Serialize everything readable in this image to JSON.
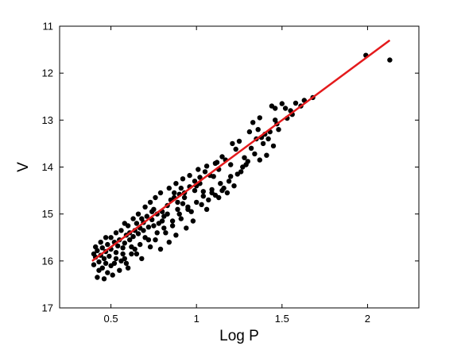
{
  "chart_data": {
    "type": "scatter",
    "title": "",
    "xlabel": "Log P",
    "ylabel": "V",
    "xlim": [
      0.2,
      2.3
    ],
    "ylim": [
      11,
      17
    ],
    "y_inverted": true,
    "x_ticks": [
      0.5,
      1,
      1.5,
      2
    ],
    "x_tick_labels": [
      "0.5",
      "1",
      "1.5",
      "2"
    ],
    "y_ticks": [
      11,
      12,
      13,
      14,
      15,
      16,
      17
    ],
    "y_tick_labels": [
      "11",
      "12",
      "13",
      "14",
      "15",
      "16",
      "17"
    ],
    "grid": false,
    "legend": "none",
    "colors": {
      "points": "#000000",
      "fit_line": "#e41a1c",
      "axes": "#000000"
    },
    "fit_line": {
      "x": [
        0.39,
        2.13
      ],
      "y": [
        16.0,
        11.3
      ]
    },
    "series": [
      {
        "values_note": "",
        "points": [
          [
            1.99,
            11.62
          ],
          [
            2.13,
            11.72
          ],
          [
            1.68,
            12.52
          ],
          [
            1.63,
            12.58
          ],
          [
            1.58,
            12.64
          ],
          [
            1.55,
            12.8
          ],
          [
            1.5,
            12.65
          ],
          [
            1.52,
            12.75
          ],
          [
            1.46,
            12.75
          ],
          [
            1.53,
            12.96
          ],
          [
            1.46,
            13.0
          ],
          [
            1.47,
            13.08
          ],
          [
            1.4,
            13.3
          ],
          [
            1.38,
            13.37
          ],
          [
            1.35,
            13.4
          ],
          [
            1.36,
            13.2
          ],
          [
            1.43,
            13.25
          ],
          [
            1.33,
            13.05
          ],
          [
            1.37,
            12.95
          ],
          [
            1.44,
            12.7
          ],
          [
            1.31,
            13.25
          ],
          [
            1.25,
            13.45
          ],
          [
            1.21,
            13.5
          ],
          [
            1.28,
            13.8
          ],
          [
            1.34,
            13.72
          ],
          [
            1.23,
            13.62
          ],
          [
            1.17,
            13.85
          ],
          [
            1.2,
            13.95
          ],
          [
            1.15,
            13.78
          ],
          [
            1.13,
            14.05
          ],
          [
            1.1,
            14.2
          ],
          [
            1.08,
            14.18
          ],
          [
            1.12,
            13.9
          ],
          [
            1.05,
            14.1
          ],
          [
            1.02,
            14.22
          ],
          [
            0.99,
            14.3
          ],
          [
            0.96,
            14.42
          ],
          [
            1.0,
            14.4
          ],
          [
            1.04,
            14.52
          ],
          [
            1.09,
            14.48
          ],
          [
            1.14,
            14.35
          ],
          [
            0.93,
            14.55
          ],
          [
            0.9,
            14.58
          ],
          [
            0.87,
            14.65
          ],
          [
            0.92,
            14.78
          ],
          [
            0.95,
            14.85
          ],
          [
            0.89,
            14.9
          ],
          [
            0.85,
            14.7
          ],
          [
            0.83,
            14.82
          ],
          [
            0.8,
            14.95
          ],
          [
            0.81,
            15.05
          ],
          [
            0.77,
            15.0
          ],
          [
            0.75,
            14.9
          ],
          [
            0.78,
            15.2
          ],
          [
            0.74,
            15.12
          ],
          [
            0.71,
            15.05
          ],
          [
            0.72,
            15.28
          ],
          [
            0.69,
            15.18
          ],
          [
            0.67,
            15.3
          ],
          [
            0.66,
            15.42
          ],
          [
            0.7,
            15.5
          ],
          [
            0.64,
            15.35
          ],
          [
            0.63,
            15.48
          ],
          [
            0.61,
            15.55
          ],
          [
            0.62,
            15.7
          ],
          [
            0.59,
            15.45
          ],
          [
            0.58,
            15.62
          ],
          [
            0.57,
            15.72
          ],
          [
            0.55,
            15.55
          ],
          [
            0.54,
            15.68
          ],
          [
            0.53,
            15.82
          ],
          [
            0.52,
            15.6
          ],
          [
            0.5,
            15.75
          ],
          [
            0.49,
            15.9
          ],
          [
            0.48,
            15.65
          ],
          [
            0.47,
            15.8
          ],
          [
            0.46,
            15.95
          ],
          [
            0.45,
            15.72
          ],
          [
            0.44,
            15.88
          ],
          [
            0.43,
            16.02
          ],
          [
            0.42,
            15.78
          ],
          [
            0.41,
            15.92
          ],
          [
            0.4,
            16.08
          ],
          [
            0.45,
            16.15
          ],
          [
            0.48,
            16.25
          ],
          [
            0.42,
            16.35
          ],
          [
            0.46,
            16.38
          ],
          [
            0.51,
            16.3
          ],
          [
            0.55,
            16.2
          ],
          [
            0.6,
            16.15
          ],
          [
            0.52,
            16.05
          ],
          [
            0.58,
            15.95
          ],
          [
            0.65,
            15.85
          ],
          [
            0.68,
            15.95
          ],
          [
            0.73,
            15.7
          ],
          [
            0.76,
            15.55
          ],
          [
            0.82,
            15.4
          ],
          [
            0.86,
            15.25
          ],
          [
            0.91,
            15.1
          ],
          [
            0.97,
            14.95
          ],
          [
            1.03,
            14.8
          ],
          [
            1.07,
            14.7
          ],
          [
            1.11,
            14.6
          ],
          [
            1.16,
            14.45
          ],
          [
            1.19,
            14.3
          ],
          [
            1.24,
            14.15
          ],
          [
            1.27,
            14.0
          ],
          [
            1.3,
            13.88
          ],
          [
            1.22,
            14.4
          ],
          [
            1.18,
            14.55
          ],
          [
            1.13,
            14.65
          ],
          [
            1.06,
            14.9
          ],
          [
            0.98,
            15.15
          ],
          [
            0.94,
            15.3
          ],
          [
            0.88,
            15.45
          ],
          [
            0.84,
            15.6
          ],
          [
            0.79,
            15.75
          ],
          [
            0.56,
            15.35
          ],
          [
            0.6,
            15.25
          ],
          [
            0.63,
            15.1
          ],
          [
            0.66,
            15.0
          ],
          [
            0.7,
            14.85
          ],
          [
            0.73,
            14.75
          ],
          [
            0.76,
            14.65
          ],
          [
            0.79,
            14.55
          ],
          [
            0.84,
            14.45
          ],
          [
            0.88,
            14.35
          ],
          [
            0.92,
            14.25
          ],
          [
            0.96,
            14.18
          ],
          [
            1.01,
            14.05
          ],
          [
            1.06,
            13.98
          ],
          [
            1.11,
            13.92
          ],
          [
            0.5,
            15.5
          ],
          [
            0.53,
            15.4
          ],
          [
            0.44,
            15.6
          ],
          [
            0.47,
            15.5
          ],
          [
            0.41,
            15.7
          ],
          [
            0.4,
            15.85
          ],
          [
            0.43,
            16.2
          ],
          [
            0.5,
            16.1
          ],
          [
            0.56,
            16.0
          ],
          [
            0.62,
            15.85
          ],
          [
            0.67,
            15.65
          ],
          [
            0.72,
            15.55
          ],
          [
            0.77,
            15.4
          ],
          [
            0.81,
            15.3
          ],
          [
            0.86,
            15.15
          ],
          [
            0.9,
            15.0
          ],
          [
            0.95,
            14.9
          ],
          [
            1.0,
            14.75
          ],
          [
            1.04,
            14.62
          ],
          [
            1.09,
            14.55
          ],
          [
            1.15,
            14.5
          ],
          [
            1.2,
            14.2
          ],
          [
            1.26,
            14.1
          ],
          [
            1.29,
            13.95
          ],
          [
            1.32,
            13.6
          ],
          [
            1.39,
            13.5
          ],
          [
            1.42,
            13.4
          ],
          [
            1.48,
            13.2
          ],
          [
            1.45,
            13.55
          ],
          [
            1.41,
            13.75
          ],
          [
            1.37,
            13.85
          ],
          [
            1.56,
            12.88
          ],
          [
            1.61,
            12.7
          ],
          [
            0.58,
            15.2
          ],
          [
            0.61,
            15.4
          ],
          [
            0.65,
            15.2
          ],
          [
            0.68,
            15.1
          ],
          [
            0.74,
            14.95
          ],
          [
            0.87,
            14.55
          ],
          [
            0.91,
            14.45
          ],
          [
            0.99,
            14.5
          ],
          [
            1.02,
            14.35
          ],
          [
            0.47,
            16.05
          ],
          [
            0.53,
            15.95
          ],
          [
            0.57,
            15.85
          ],
          [
            0.59,
            16.05
          ],
          [
            0.64,
            15.75
          ],
          [
            0.69,
            15.35
          ],
          [
            0.75,
            15.25
          ],
          [
            0.8,
            15.15
          ],
          [
            0.83,
            15.0
          ],
          [
            0.89,
            14.75
          ],
          [
            0.93,
            14.65
          ]
        ]
      }
    ]
  }
}
